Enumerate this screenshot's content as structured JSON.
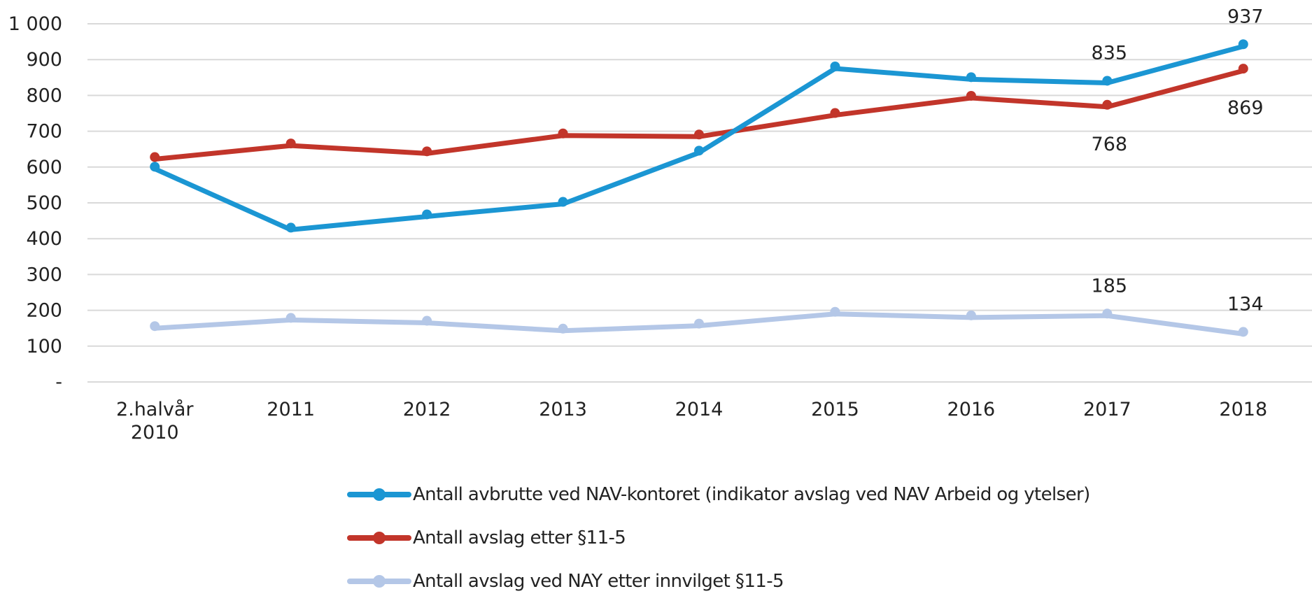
{
  "chart_data": {
    "type": "line",
    "title": "",
    "xlabel": "",
    "ylabel": "",
    "ylim": [
      0,
      1000
    ],
    "y_ticks": [
      {
        "value": 0,
        "label": "-"
      },
      {
        "value": 100,
        "label": "100"
      },
      {
        "value": 200,
        "label": "200"
      },
      {
        "value": 300,
        "label": "300"
      },
      {
        "value": 400,
        "label": "400"
      },
      {
        "value": 500,
        "label": "500"
      },
      {
        "value": 600,
        "label": "600"
      },
      {
        "value": 700,
        "label": "700"
      },
      {
        "value": 800,
        "label": "800"
      },
      {
        "value": 900,
        "label": "900"
      },
      {
        "value": 1000,
        "label": "1 000"
      }
    ],
    "grid": true,
    "categories": [
      [
        "2.halvår",
        "2010"
      ],
      [
        "2011"
      ],
      [
        "2012"
      ],
      [
        "2013"
      ],
      [
        "2014"
      ],
      [
        "2015"
      ],
      [
        "2016"
      ],
      [
        "2017"
      ],
      [
        "2018"
      ]
    ],
    "legend_position": "bottom",
    "series": [
      {
        "name": "Antall avbrutte ved NAV-kontoret (indikator avslag ved NAV Arbeid og ytelser)",
        "color": "#1b96d3",
        "values": [
          595,
          425,
          462,
          497,
          640,
          875,
          845,
          835,
          937
        ],
        "data_labels": [
          {
            "index": 7,
            "text": "835",
            "position": "above"
          },
          {
            "index": 8,
            "text": "937",
            "position": "above"
          }
        ]
      },
      {
        "name": "Antall avslag etter §11-5",
        "color": "#c2352a",
        "values": [
          622,
          660,
          638,
          688,
          685,
          745,
          793,
          768,
          869
        ],
        "data_labels": [
          {
            "index": 7,
            "text": "768",
            "position": "below"
          },
          {
            "index": 8,
            "text": "869",
            "position": "below"
          }
        ]
      },
      {
        "name": "Antall avslag ved NAY etter innvilget §11-5",
        "color": "#b4c7e7",
        "values": [
          150,
          173,
          165,
          143,
          157,
          190,
          180,
          185,
          134
        ],
        "data_labels": [
          {
            "index": 7,
            "text": "185",
            "position": "above"
          },
          {
            "index": 8,
            "text": "134",
            "position": "above"
          }
        ]
      }
    ]
  },
  "legend": {
    "items": [
      {
        "label": "Antall avbrutte ved NAV-kontoret (indikator avslag ved NAV Arbeid og ytelser)",
        "color": "#1b96d3"
      },
      {
        "label": "Antall avslag etter §11-5",
        "color": "#c2352a"
      },
      {
        "label": "Antall avslag ved NAY etter innvilget §11-5",
        "color": "#b4c7e7"
      }
    ]
  }
}
